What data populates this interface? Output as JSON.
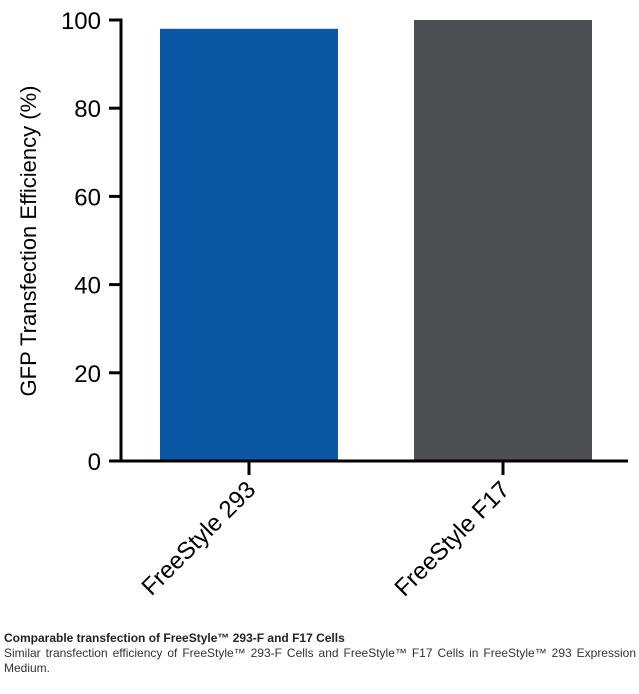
{
  "chart_data": {
    "type": "bar",
    "categories": [
      "FreeStyle 293",
      "FreeStyle F17"
    ],
    "values": [
      98,
      100
    ],
    "colors": [
      "#0b56a5",
      "#4c4f54"
    ],
    "ylabel": "GFP Transfection Efficiency (%)",
    "xlabel": "",
    "ylim": [
      0,
      100
    ],
    "yticks": [
      0,
      20,
      40,
      60,
      80,
      100
    ],
    "grid": false,
    "axis_color": "#000000"
  },
  "caption": {
    "title": "Comparable transfection of FreeStyle™ 293-F and F17 Cells",
    "body": "Similar transfection efficiency of FreeStyle™ 293-F Cells and FreeStyle™ F17 Cells in FreeStyle™ 293 Expression Medium."
  }
}
